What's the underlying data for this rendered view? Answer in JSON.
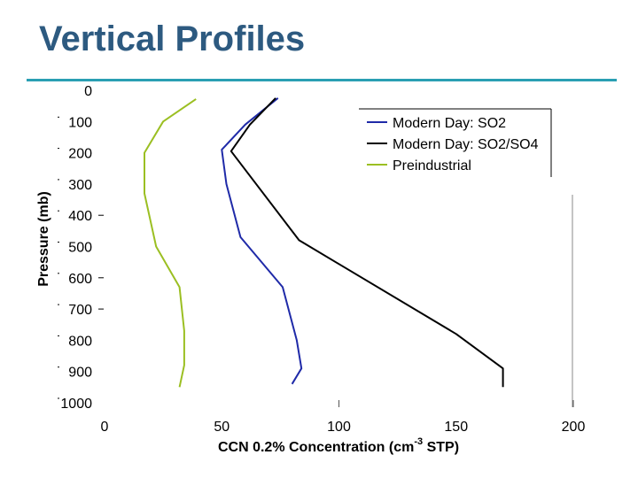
{
  "slide": {
    "title": "Vertical Profiles"
  },
  "colors": {
    "accent": "#2a9fb3",
    "title": "#2d5a80",
    "series_so2": "#1f2aa8",
    "series_so2so4": "#000000",
    "series_preindustrial": "#9bbf22"
  },
  "chart_data": {
    "type": "line",
    "xlabel": "CCN 0.2% Concentration (cm",
    "xlabel_sup": "-3",
    "xlabel_tail": " STP)",
    "ylabel": "Pressure (mb)",
    "xlim": [
      0,
      200
    ],
    "ylim": [
      0,
      1000
    ],
    "y_inverted": true,
    "x_ticks": [
      "0",
      "50",
      "100",
      "150",
      "200"
    ],
    "y_ticks": [
      "0",
      "100",
      "200",
      "300",
      "400",
      "500",
      "600",
      "700",
      "800",
      "900",
      "1000"
    ],
    "legend_position": "top-right",
    "series": [
      {
        "name": "Modern Day: SO2",
        "color": "#1f2aa8",
        "points": [
          [
            74,
            25
          ],
          [
            60,
            110
          ],
          [
            50,
            190
          ],
          [
            52,
            300
          ],
          [
            58,
            470
          ],
          [
            76,
            630
          ],
          [
            82,
            800
          ],
          [
            84,
            890
          ],
          [
            80,
            940
          ]
        ]
      },
      {
        "name": "Modern Day: SO2/SO4",
        "color": "#000000",
        "points": [
          [
            73,
            25
          ],
          [
            62,
            110
          ],
          [
            54,
            195
          ],
          [
            83,
            480
          ],
          [
            150,
            780
          ],
          [
            170,
            890
          ],
          [
            170,
            950
          ]
        ]
      },
      {
        "name": "Preindustrial",
        "color": "#9bbf22",
        "points": [
          [
            39,
            28
          ],
          [
            25,
            100
          ],
          [
            17,
            200
          ],
          [
            17,
            330
          ],
          [
            22,
            500
          ],
          [
            32,
            630
          ],
          [
            34,
            770
          ],
          [
            34,
            880
          ],
          [
            32,
            950
          ]
        ]
      }
    ]
  }
}
